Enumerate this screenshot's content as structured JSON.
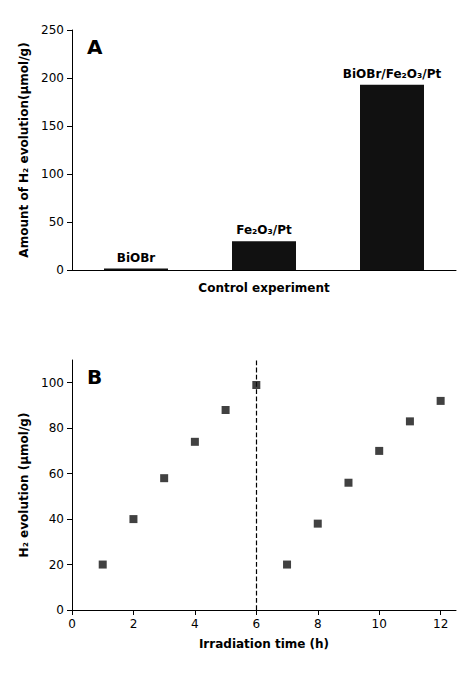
{
  "chart_data": [
    {
      "type": "bar",
      "title": "A",
      "categories": [
        "BiOBr",
        "Fe₂O₃/Pt",
        "BiOBr/Fe₂O₃/Pt"
      ],
      "values": [
        1.5,
        30,
        193
      ],
      "color": "#111111",
      "xlabel": "Control experiment",
      "ylabel": "Amount of H₂ evolution(μmol/g)",
      "ylim": [
        0,
        250
      ],
      "yticks": [
        0,
        50,
        100,
        150,
        200,
        250
      ],
      "tick_labels": "y",
      "grid": false
    },
    {
      "type": "scatter",
      "title": "B",
      "x": [
        1,
        2,
        3,
        4,
        5,
        6,
        7,
        8,
        9,
        10,
        11,
        12
      ],
      "values": [
        20,
        40,
        58,
        74,
        88,
        99,
        20,
        38,
        56,
        70,
        83,
        92
      ],
      "color": "#111111",
      "marker": "square",
      "vline": 6,
      "xlabel": "Irradiation time (h)",
      "ylabel": "H₂ evolution (μmol/g)",
      "xlim": [
        0,
        12.5
      ],
      "xticks": [
        0,
        2,
        4,
        6,
        8,
        10,
        12
      ],
      "ylim": [
        0,
        110
      ],
      "yticks": [
        0,
        20,
        40,
        60,
        80,
        100
      ],
      "grid": false
    }
  ]
}
